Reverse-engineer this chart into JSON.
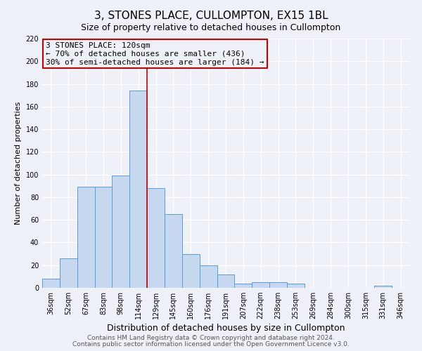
{
  "title": "3, STONES PLACE, CULLOMPTON, EX15 1BL",
  "subtitle": "Size of property relative to detached houses in Cullompton",
  "xlabel": "Distribution of detached houses by size in Cullompton",
  "ylabel": "Number of detached properties",
  "bar_labels": [
    "36sqm",
    "52sqm",
    "67sqm",
    "83sqm",
    "98sqm",
    "114sqm",
    "129sqm",
    "145sqm",
    "160sqm",
    "176sqm",
    "191sqm",
    "207sqm",
    "222sqm",
    "238sqm",
    "253sqm",
    "269sqm",
    "284sqm",
    "300sqm",
    "315sqm",
    "331sqm",
    "346sqm"
  ],
  "bar_values": [
    8,
    26,
    89,
    89,
    99,
    174,
    88,
    65,
    30,
    20,
    12,
    4,
    5,
    5,
    4,
    0,
    0,
    0,
    0,
    2,
    0
  ],
  "bar_color": "#c5d8f0",
  "bar_edge_color": "#5b9bd5",
  "ylim": [
    0,
    220
  ],
  "yticks": [
    0,
    20,
    40,
    60,
    80,
    100,
    120,
    140,
    160,
    180,
    200,
    220
  ],
  "vline_x": 5.5,
  "vline_color": "#cc0000",
  "annotation_title": "3 STONES PLACE: 120sqm",
  "annotation_line1": "← 70% of detached houses are smaller (436)",
  "annotation_line2": "30% of semi-detached houses are larger (184) →",
  "annotation_box_color": "#cc0000",
  "footer_line1": "Contains HM Land Registry data © Crown copyright and database right 2024.",
  "footer_line2": "Contains public sector information licensed under the Open Government Licence v3.0.",
  "background_color": "#eef2f8",
  "grid_color": "#ffffff",
  "title_fontsize": 11,
  "subtitle_fontsize": 9,
  "xlabel_fontsize": 9,
  "ylabel_fontsize": 8,
  "tick_fontsize": 7,
  "ann_fontsize": 8,
  "footer_fontsize": 6.5
}
